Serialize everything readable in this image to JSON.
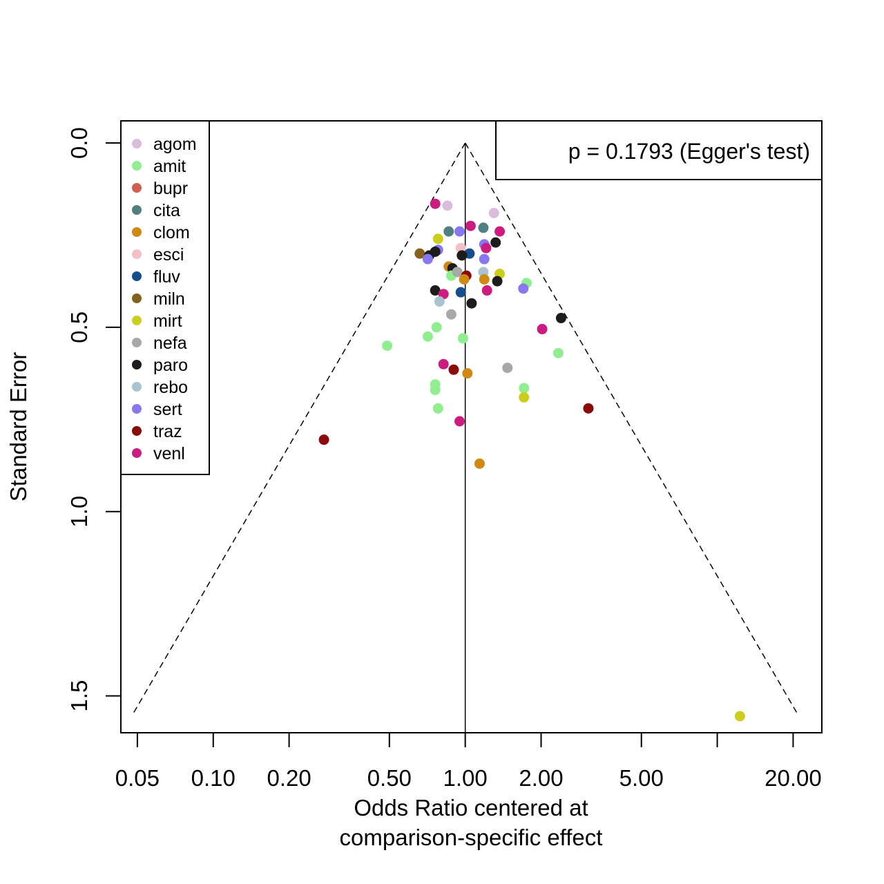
{
  "chart_data": {
    "type": "scatter",
    "subtype": "funnel",
    "xlabel": [
      "Odds Ratio centered at",
      "comparison-specific effect"
    ],
    "ylabel": "Standard Error",
    "x_scale": "log",
    "x_ticks": [
      0.05,
      0.1,
      0.2,
      0.5,
      1.0,
      2.0,
      5.0,
      10.0,
      20.0
    ],
    "x_tick_labels": [
      "0.05",
      "0.10",
      "0.20",
      "0.50",
      "1.00",
      "2.00",
      "5.00",
      "",
      "20.00"
    ],
    "y_ticks": [
      0.0,
      0.5,
      1.0,
      1.5
    ],
    "y_tick_labels": [
      "0.0",
      "0.5",
      "1.0",
      "1.5"
    ],
    "y_range": [
      -0.06,
      1.6
    ],
    "y_reversed": true,
    "x_range": [
      0.043,
      26
    ],
    "reference_line_x": 1.0,
    "funnel": {
      "center": 1.0,
      "se_max": 1.55,
      "z": 1.96
    },
    "annotation": "p = 0.1793 (Egger's test)",
    "legend_position": "top-left",
    "legend": [
      {
        "name": "agom",
        "color": "#DCBCDC"
      },
      {
        "name": "amit",
        "color": "#90EE90"
      },
      {
        "name": "bupr",
        "color": "#CD6050"
      },
      {
        "name": "cita",
        "color": "#508080"
      },
      {
        "name": "clom",
        "color": "#D08A14"
      },
      {
        "name": "esci",
        "color": "#F4C0C8"
      },
      {
        "name": "fluv",
        "color": "#154E8C"
      },
      {
        "name": "miln",
        "color": "#84621E"
      },
      {
        "name": "mirt",
        "color": "#CDCD1E"
      },
      {
        "name": "nefa",
        "color": "#A8A8A8"
      },
      {
        "name": "paro",
        "color": "#1C1C1C"
      },
      {
        "name": "rebo",
        "color": "#A8C4D0"
      },
      {
        "name": "sert",
        "color": "#8878F0"
      },
      {
        "name": "traz",
        "color": "#8B0A0A"
      },
      {
        "name": "venl",
        "color": "#CC1C80"
      }
    ],
    "points": [
      {
        "group": "agom",
        "x": 0.85,
        "se": 0.17
      },
      {
        "group": "agom",
        "x": 1.3,
        "se": 0.19
      },
      {
        "group": "venl",
        "x": 0.76,
        "se": 0.165
      },
      {
        "group": "cita",
        "x": 0.86,
        "se": 0.24
      },
      {
        "group": "cita",
        "x": 1.18,
        "se": 0.23
      },
      {
        "group": "venl",
        "x": 1.05,
        "se": 0.225
      },
      {
        "group": "sert",
        "x": 0.95,
        "se": 0.24
      },
      {
        "group": "mirt",
        "x": 0.78,
        "se": 0.26
      },
      {
        "group": "venl",
        "x": 1.37,
        "se": 0.24
      },
      {
        "group": "paro",
        "x": 1.32,
        "se": 0.27
      },
      {
        "group": "sert",
        "x": 1.19,
        "se": 0.275
      },
      {
        "group": "venl",
        "x": 1.21,
        "se": 0.285
      },
      {
        "group": "esci",
        "x": 0.96,
        "se": 0.285
      },
      {
        "group": "sert",
        "x": 0.78,
        "se": 0.29
      },
      {
        "group": "miln",
        "x": 0.66,
        "se": 0.3
      },
      {
        "group": "paro",
        "x": 0.76,
        "se": 0.295
      },
      {
        "group": "paro",
        "x": 0.72,
        "se": 0.305
      },
      {
        "group": "sert",
        "x": 0.71,
        "se": 0.315
      },
      {
        "group": "fluv",
        "x": 1.04,
        "se": 0.3
      },
      {
        "group": "paro",
        "x": 0.97,
        "se": 0.305
      },
      {
        "group": "sert",
        "x": 1.19,
        "se": 0.315
      },
      {
        "group": "clom",
        "x": 0.86,
        "se": 0.335
      },
      {
        "group": "paro",
        "x": 0.89,
        "se": 0.34
      },
      {
        "group": "amit",
        "x": 0.88,
        "se": 0.36
      },
      {
        "group": "nefa",
        "x": 0.93,
        "se": 0.35
      },
      {
        "group": "rebo",
        "x": 1.18,
        "se": 0.35
      },
      {
        "group": "mirt",
        "x": 1.37,
        "se": 0.355
      },
      {
        "group": "traz",
        "x": 1.01,
        "se": 0.36
      },
      {
        "group": "clom",
        "x": 0.99,
        "se": 0.37
      },
      {
        "group": "clom",
        "x": 1.19,
        "se": 0.37
      },
      {
        "group": "paro",
        "x": 1.34,
        "se": 0.375
      },
      {
        "group": "amit",
        "x": 1.75,
        "se": 0.38
      },
      {
        "group": "sert",
        "x": 1.7,
        "se": 0.395
      },
      {
        "group": "venl",
        "x": 1.22,
        "se": 0.4
      },
      {
        "group": "paro",
        "x": 0.76,
        "se": 0.4
      },
      {
        "group": "fluv",
        "x": 0.96,
        "se": 0.405
      },
      {
        "group": "venl",
        "x": 0.82,
        "se": 0.41
      },
      {
        "group": "rebo",
        "x": 0.79,
        "se": 0.43
      },
      {
        "group": "paro",
        "x": 1.06,
        "se": 0.435
      },
      {
        "group": "nefa",
        "x": 0.88,
        "se": 0.465
      },
      {
        "group": "paro",
        "x": 2.4,
        "se": 0.475
      },
      {
        "group": "venl",
        "x": 2.02,
        "se": 0.505
      },
      {
        "group": "amit",
        "x": 0.77,
        "se": 0.5
      },
      {
        "group": "amit",
        "x": 0.71,
        "se": 0.525
      },
      {
        "group": "amit",
        "x": 0.98,
        "se": 0.53
      },
      {
        "group": "amit",
        "x": 0.49,
        "se": 0.55
      },
      {
        "group": "amit",
        "x": 2.34,
        "se": 0.57
      },
      {
        "group": "venl",
        "x": 0.82,
        "se": 0.6
      },
      {
        "group": "nefa",
        "x": 1.47,
        "se": 0.61
      },
      {
        "group": "traz",
        "x": 0.9,
        "se": 0.615
      },
      {
        "group": "clom",
        "x": 1.02,
        "se": 0.625
      },
      {
        "group": "amit",
        "x": 0.76,
        "se": 0.655
      },
      {
        "group": "amit",
        "x": 0.76,
        "se": 0.67
      },
      {
        "group": "amit",
        "x": 1.71,
        "se": 0.665
      },
      {
        "group": "mirt",
        "x": 1.71,
        "se": 0.69
      },
      {
        "group": "traz",
        "x": 3.08,
        "se": 0.72
      },
      {
        "group": "amit",
        "x": 0.78,
        "se": 0.72
      },
      {
        "group": "venl",
        "x": 0.95,
        "se": 0.755
      },
      {
        "group": "traz",
        "x": 0.275,
        "se": 0.805
      },
      {
        "group": "clom",
        "x": 1.14,
        "se": 0.87
      },
      {
        "group": "mirt",
        "x": 12.3,
        "se": 1.555
      }
    ]
  }
}
